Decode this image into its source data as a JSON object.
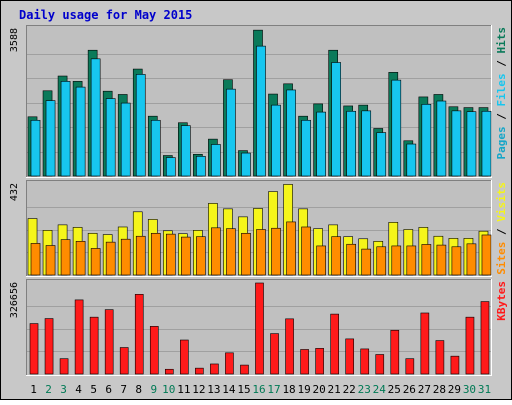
{
  "chart_data": {
    "title": "Daily usage for May 2015",
    "days": [
      "1",
      "2",
      "3",
      "4",
      "5",
      "6",
      "7",
      "8",
      "9",
      "10",
      "11",
      "12",
      "13",
      "14",
      "15",
      "16",
      "17",
      "18",
      "19",
      "20",
      "21",
      "22",
      "23",
      "24",
      "25",
      "26",
      "27",
      "28",
      "29",
      "30",
      "31"
    ],
    "weekend_days": [
      "2",
      "3",
      "9",
      "10",
      "16",
      "17",
      "23",
      "24",
      "30",
      "31"
    ],
    "colors": {
      "title": "#0000cc",
      "weekday_label": "#000000",
      "weekend_label": "#007a55",
      "hits": "#0a7a5a",
      "files": "#17c6ef",
      "pages": "#16a6c8",
      "visits": "#f5f51a",
      "sites": "#ff8c00",
      "kbytes": "#ff1a1a",
      "panel_bg": "#c0c0c0",
      "frame_bg": "#c8c8c8"
    },
    "charts": [
      {
        "type": "bar",
        "max_label": "3588",
        "ymax": 3588,
        "legend": [
          "Pages",
          "Files",
          "Hits"
        ],
        "series": [
          {
            "name": "Hits",
            "values": [
              1445,
              2080,
              2440,
              2310,
              3070,
              2070,
              1990,
              2610,
              1460,
              500,
              1300,
              530,
              900,
              2350,
              620,
              3560,
              2000,
              2250,
              1460,
              1760,
              3070,
              1710,
              1730,
              1160,
              2530,
              860,
              1930,
              1990,
              1690,
              1670,
              1670
            ]
          },
          {
            "name": "Files",
            "values": [
              1360,
              1840,
              2310,
              2170,
              2860,
              1890,
              1780,
              2480,
              1360,
              450,
              1230,
              480,
              770,
              2120,
              560,
              3170,
              1730,
              2100,
              1360,
              1560,
              2770,
              1580,
              1590,
              1060,
              2340,
              780,
              1750,
              1830,
              1590,
              1570,
              1580
            ]
          }
        ]
      },
      {
        "type": "bar",
        "max_label": "432",
        "ymax": 432,
        "legend": [
          "Sites",
          "Visits"
        ],
        "series": [
          {
            "name": "Visits",
            "values": [
              268,
              212,
              238,
              226,
              198,
              192,
              228,
              300,
              264,
              210,
              196,
              212,
              340,
              314,
              276,
              316,
              396,
              430,
              314,
              220,
              238,
              182,
              172,
              160,
              250,
              216,
              226,
              184,
              174,
              174,
              208
            ]
          },
          {
            "name": "Sites",
            "values": [
              150,
              140,
              168,
              160,
              126,
              156,
              170,
              184,
              198,
              194,
              180,
              182,
              224,
              220,
              198,
              216,
              222,
              252,
              228,
              138,
              182,
              146,
              123,
              134,
              138,
              138,
              145,
              142,
              134,
              148,
              190
            ]
          }
        ]
      },
      {
        "type": "bar",
        "max_label": "326656",
        "ymax": 326656,
        "legend": [
          "KBytes"
        ],
        "series": [
          {
            "name": "KBytes",
            "values": [
              181000,
              199000,
              55000,
              266000,
              204000,
              231000,
              95000,
              286000,
              171000,
              17000,
              122000,
              21000,
              36000,
              76000,
              32000,
              326656,
              145000,
              198000,
              88000,
              92000,
              215000,
              126000,
              90000,
              70000,
              157000,
              55000,
              219000,
              120000,
              64000,
              204000,
              260000
            ]
          }
        ]
      }
    ]
  }
}
